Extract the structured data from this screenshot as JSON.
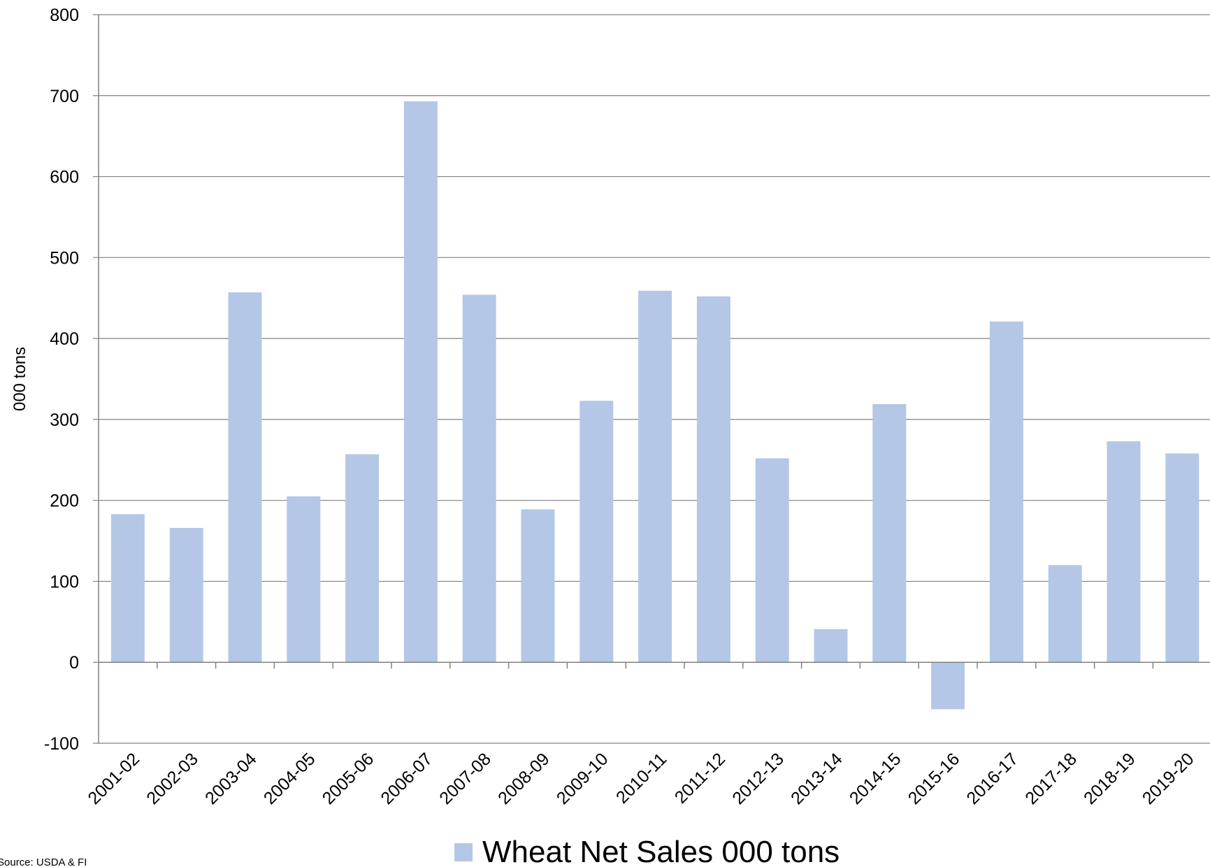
{
  "chart_data": {
    "type": "bar",
    "categories": [
      "2001-02",
      "2002-03",
      "2003-04",
      "2004-05",
      "2005-06",
      "2006-07",
      "2007-08",
      "2008-09",
      "2009-10",
      "2010-11",
      "2011-12",
      "2012-13",
      "2013-14",
      "2014-15",
      "2015-16",
      "2016-17",
      "2017-18",
      "2018-19",
      "2019-20"
    ],
    "series": [
      {
        "name": "Wheat Net Sales 000 tons",
        "color": "#b4c7e7",
        "values": [
          183,
          166,
          457,
          205,
          257,
          693,
          454,
          189,
          323,
          459,
          452,
          252,
          41,
          319,
          -58,
          421,
          120,
          273,
          258
        ]
      }
    ],
    "ylabel": "000 tons",
    "xlabel": "",
    "title": "",
    "ylim": [
      -100,
      800
    ],
    "yticks": [
      "800",
      "700",
      "600",
      "500",
      "400",
      "300",
      "200",
      "100",
      "0",
      "-100"
    ],
    "grid": true,
    "legend_position": "bottom",
    "source": "Source: USDA & FI"
  }
}
